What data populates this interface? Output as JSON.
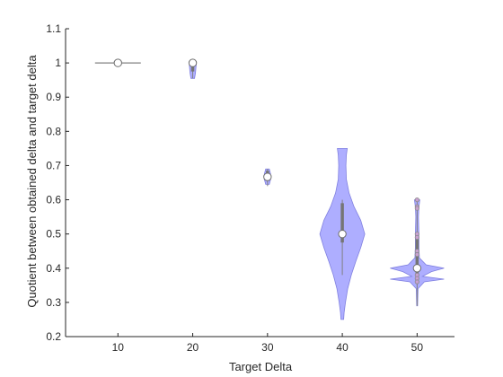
{
  "chart_data": {
    "type": "violin",
    "title": "",
    "xlabel": "Target Delta",
    "ylabel": "Quotient between obtained delta and target delta",
    "categories": [
      "10",
      "20",
      "30",
      "40",
      "50"
    ],
    "x_values": [
      10,
      20,
      30,
      40,
      50
    ],
    "xlim": [
      3,
      55
    ],
    "ylim": [
      0.2,
      1.1
    ],
    "y_ticks": [
      0.2,
      0.3,
      0.4,
      0.5,
      0.6,
      0.7,
      0.8,
      0.9,
      1,
      1.1
    ],
    "y_tick_labels": [
      "0.2",
      "0.3",
      "0.4",
      "0.5",
      "0.6",
      "0.7",
      "0.8",
      "0.9",
      "1",
      "1.1"
    ],
    "violin_color": "#a0a0ff",
    "violin_edge_color": "#8080e0",
    "marker_edge_color": "#808080",
    "median_color": "#ffffff",
    "series": [
      {
        "x": 10,
        "median": 1.0,
        "min": 1.0,
        "max": 1.0,
        "q1": 1.0,
        "q3": 1.0,
        "violin": [
          [
            1.0,
            3.0
          ]
        ],
        "outliers": []
      },
      {
        "x": 20,
        "median": 1.0,
        "min": 0.955,
        "max": 1.0,
        "q1": 0.975,
        "q3": 1.0,
        "violin": [
          [
            0.955,
            0.2
          ],
          [
            0.97,
            0.3
          ],
          [
            0.985,
            0.35
          ],
          [
            1.0,
            0.4
          ]
        ],
        "outliers": []
      },
      {
        "x": 30,
        "median": 0.667,
        "min": 0.64,
        "max": 0.69,
        "q1": 0.655,
        "q3": 0.685,
        "violin": [
          [
            0.645,
            0.2
          ],
          [
            0.66,
            0.35
          ],
          [
            0.675,
            0.35
          ],
          [
            0.69,
            0.2
          ]
        ],
        "outliers": []
      },
      {
        "x": 40,
        "median": 0.5,
        "min": 0.38,
        "max": 0.6,
        "q1": 0.475,
        "q3": 0.59,
        "violin": [
          [
            0.25,
            0.15
          ],
          [
            0.27,
            0.2
          ],
          [
            0.3,
            0.35
          ],
          [
            0.34,
            0.6
          ],
          [
            0.38,
            1.0
          ],
          [
            0.42,
            1.5
          ],
          [
            0.46,
            2.05
          ],
          [
            0.5,
            2.5
          ],
          [
            0.54,
            2.05
          ],
          [
            0.58,
            1.3
          ],
          [
            0.62,
            0.75
          ],
          [
            0.66,
            0.45
          ],
          [
            0.7,
            0.4
          ],
          [
            0.73,
            0.45
          ],
          [
            0.75,
            0.55
          ]
        ],
        "outliers": []
      },
      {
        "x": 50,
        "median": 0.4,
        "min": 0.29,
        "max": 0.6,
        "q1": 0.37,
        "q3": 0.5,
        "violin": [
          [
            0.29,
            0.05
          ],
          [
            0.34,
            0.1
          ],
          [
            0.36,
            0.8
          ],
          [
            0.368,
            3.0
          ],
          [
            0.376,
            0.6
          ],
          [
            0.39,
            1.6
          ],
          [
            0.4,
            3.0
          ],
          [
            0.41,
            1.0
          ],
          [
            0.43,
            0.25
          ],
          [
            0.46,
            0.2
          ],
          [
            0.5,
            0.2
          ],
          [
            0.55,
            0.15
          ],
          [
            0.58,
            0.2
          ],
          [
            0.6,
            0.3
          ]
        ],
        "outliers": [
          0.6,
          0.58,
          0.575,
          0.5,
          0.49,
          0.45,
          0.44,
          0.38,
          0.37,
          0.36
        ]
      }
    ]
  }
}
